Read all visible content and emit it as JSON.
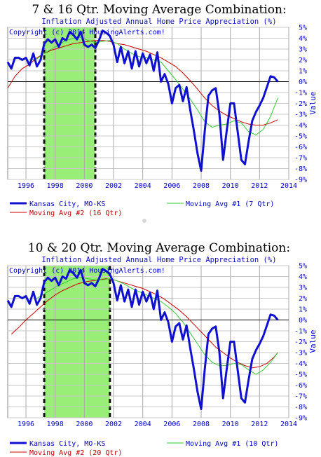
{
  "chart_data": [
    {
      "type": "line",
      "title": "7 & 16 Qtr. Moving Average Combination:",
      "subtitle": "Inflation Adjusted Annual Home Price Appreciation (%)",
      "copyright": "Copyright (c) 2014 HousingAlerts.com!",
      "ylabel": "Value",
      "xlim": [
        1994.75,
        2014
      ],
      "ylim": [
        -9,
        5
      ],
      "x_ticks": [
        "1996",
        "1998",
        "2000",
        "2002",
        "2004",
        "2006",
        "2008",
        "2010",
        "2012",
        "2014"
      ],
      "x_tick_values": [
        1996,
        1998,
        2000,
        2002,
        2004,
        2006,
        2008,
        2010,
        2012,
        2014
      ],
      "y_ticks": [
        "5%",
        "4%",
        "3%",
        "2%",
        "1%",
        "0%",
        "-1%",
        "-2%",
        "-3%",
        "-4%",
        "-5%",
        "-6%",
        "-7%",
        "-8%",
        "-9%"
      ],
      "y_tick_values": [
        5,
        4,
        3,
        2,
        1,
        0,
        -1,
        -2,
        -3,
        -4,
        -5,
        -6,
        -7,
        -8,
        -9
      ],
      "shaded_region": [
        1997.25,
        2000.75
      ],
      "grid": true,
      "legend": {
        "kansas": "Kansas City, MO-KS",
        "ma1": "Moving Avg #1 (7 Qtr)",
        "ma2": "Moving Avg #2 (16 Qtr)"
      },
      "colors": {
        "kansas": "#1010d0",
        "ma1": "#33cc33",
        "ma2": "#cc0000",
        "shade": "#99ee77",
        "zero": "#000000"
      },
      "series": [
        {
          "name": "Kansas City, MO-KS",
          "x": [
            1994.75,
            1995.0,
            1995.25,
            1995.5,
            1995.75,
            1996.0,
            1996.25,
            1996.5,
            1996.75,
            1997.0,
            1997.25,
            1997.5,
            1997.75,
            1998.0,
            1998.25,
            1998.5,
            1998.75,
            1999.0,
            1999.25,
            1999.5,
            1999.75,
            2000.0,
            2000.25,
            2000.5,
            2000.75,
            2001.0,
            2001.25,
            2001.5,
            2001.75,
            2002.0,
            2002.25,
            2002.5,
            2002.75,
            2003.0,
            2003.25,
            2003.5,
            2003.75,
            2004.0,
            2004.25,
            2004.5,
            2004.75,
            2005.0,
            2005.25,
            2005.5,
            2005.75,
            2006.0,
            2006.25,
            2006.5,
            2006.75,
            2007.0,
            2007.25,
            2007.5,
            2007.75,
            2008.0,
            2008.25,
            2008.5,
            2008.75,
            2009.0,
            2009.25,
            2009.5,
            2009.75,
            2010.0,
            2010.25,
            2010.5,
            2010.75,
            2011.0,
            2011.25,
            2011.5,
            2011.75,
            2012.0,
            2012.25,
            2012.5,
            2012.75,
            2013.0,
            2013.25
          ],
          "y": [
            1.8,
            1.2,
            2.2,
            2.2,
            2.0,
            2.2,
            1.5,
            2.6,
            1.4,
            2.0,
            3.5,
            3.9,
            3.6,
            3.9,
            3.2,
            4.0,
            3.8,
            4.6,
            4.3,
            3.9,
            4.6,
            3.4,
            3.2,
            3.4,
            3.1,
            3.8,
            4.7,
            4.5,
            4.2,
            3.4,
            1.8,
            3.2,
            1.7,
            2.8,
            1.2,
            2.8,
            1.4,
            2.6,
            1.7,
            2.5,
            1.0,
            2.7,
            0.0,
            0.7,
            -0.2,
            -2.0,
            -0.6,
            -0.3,
            -1.8,
            -0.5,
            -2.6,
            -4.5,
            -6.6,
            -8.2,
            -4.5,
            -1.3,
            -0.8,
            -0.6,
            -3.0,
            -7.2,
            -4.5,
            -2.0,
            -2.0,
            -4.6,
            -7.2,
            -7.6,
            -5.5,
            -3.6,
            -2.8,
            -2.2,
            -1.5,
            -0.5,
            0.5,
            0.4,
            0.0
          ]
        },
        {
          "name": "Moving Avg #1 (7 Qtr)",
          "x": [
            1996.25,
            1996.75,
            1997.25,
            1997.75,
            1998.25,
            1998.75,
            1999.25,
            1999.75,
            2000.25,
            2000.75,
            2001.25,
            2001.75,
            2002.25,
            2002.75,
            2003.25,
            2003.75,
            2004.25,
            2004.75,
            2005.25,
            2005.75,
            2006.25,
            2006.75,
            2007.25,
            2007.75,
            2008.25,
            2008.75,
            2009.25,
            2009.75,
            2010.25,
            2010.75,
            2011.25,
            2011.75,
            2012.25,
            2012.75,
            2013.25
          ],
          "y": [
            2.0,
            2.1,
            2.6,
            3.0,
            3.4,
            3.8,
            4.0,
            4.1,
            3.8,
            3.6,
            3.7,
            3.8,
            3.5,
            3.0,
            2.6,
            2.3,
            2.2,
            2.0,
            1.8,
            1.0,
            0.2,
            -0.7,
            -1.6,
            -2.6,
            -3.7,
            -4.2,
            -4.0,
            -3.9,
            -3.6,
            -3.8,
            -4.6,
            -4.9,
            -4.4,
            -3.2,
            -1.5
          ]
        },
        {
          "name": "Moving Avg #2 (16 Qtr)",
          "x": [
            1994.75,
            1995.25,
            1995.75,
            1996.25,
            1996.75,
            1997.25,
            1997.75,
            1998.25,
            1998.75,
            1999.25,
            1999.75,
            2000.25,
            2000.75,
            2001.25,
            2001.75,
            2002.25,
            2002.75,
            2003.25,
            2003.75,
            2004.25,
            2004.75,
            2005.25,
            2005.75,
            2006.25,
            2006.75,
            2007.25,
            2007.75,
            2008.25,
            2008.75,
            2009.25,
            2009.75,
            2010.25,
            2010.75,
            2011.25,
            2011.75,
            2012.25,
            2012.75,
            2013.25
          ],
          "y": [
            -0.6,
            0.5,
            1.2,
            1.6,
            2.2,
            2.6,
            2.9,
            3.1,
            3.3,
            3.5,
            3.6,
            3.7,
            3.8,
            3.8,
            3.7,
            3.5,
            3.4,
            3.2,
            3.0,
            2.8,
            2.5,
            2.2,
            1.8,
            1.4,
            0.8,
            0.1,
            -0.7,
            -1.5,
            -2.2,
            -2.7,
            -3.1,
            -3.4,
            -3.7,
            -3.9,
            -4.0,
            -4.0,
            -3.8,
            -3.5
          ]
        }
      ]
    },
    {
      "type": "line",
      "title": "10 & 20 Qtr. Moving Average Combination:",
      "subtitle": "Inflation Adjusted Annual Home Price Appreciation (%)",
      "copyright": "Copyright (c) 2014 HousingAlerts.com!",
      "ylabel": "Value",
      "xlim": [
        1994.75,
        2014
      ],
      "ylim": [
        -9,
        5
      ],
      "x_ticks": [
        "1996",
        "1998",
        "2000",
        "2002",
        "2004",
        "2006",
        "2008",
        "2010",
        "2012",
        "2014"
      ],
      "x_tick_values": [
        1996,
        1998,
        2000,
        2002,
        2004,
        2006,
        2008,
        2010,
        2012,
        2014
      ],
      "y_ticks": [
        "5%",
        "4%",
        "3%",
        "2%",
        "1%",
        "0%",
        "-1%",
        "-2%",
        "-3%",
        "-4%",
        "-5%",
        "-6%",
        "-7%",
        "-8%",
        "-9%"
      ],
      "y_tick_values": [
        5,
        4,
        3,
        2,
        1,
        0,
        -1,
        -2,
        -3,
        -4,
        -5,
        -6,
        -7,
        -8,
        -9
      ],
      "shaded_region": [
        1997.25,
        2001.75
      ],
      "grid": true,
      "legend": {
        "kansas": "Kansas City, MO-KS",
        "ma1": "Moving Avg #1 (10 Qtr)",
        "ma2": "Moving Avg #2 (20 Qtr)"
      },
      "colors": {
        "kansas": "#1010d0",
        "ma1": "#33cc33",
        "ma2": "#cc0000",
        "shade": "#99ee77",
        "zero": "#000000"
      },
      "series": [
        {
          "name": "Kansas City, MO-KS",
          "x": [
            1994.75,
            1995.0,
            1995.25,
            1995.5,
            1995.75,
            1996.0,
            1996.25,
            1996.5,
            1996.75,
            1997.0,
            1997.25,
            1997.5,
            1997.75,
            1998.0,
            1998.25,
            1998.5,
            1998.75,
            1999.0,
            1999.25,
            1999.5,
            1999.75,
            2000.0,
            2000.25,
            2000.5,
            2000.75,
            2001.0,
            2001.25,
            2001.5,
            2001.75,
            2002.0,
            2002.25,
            2002.5,
            2002.75,
            2003.0,
            2003.25,
            2003.5,
            2003.75,
            2004.0,
            2004.25,
            2004.5,
            2004.75,
            2005.0,
            2005.25,
            2005.5,
            2005.75,
            2006.0,
            2006.25,
            2006.5,
            2006.75,
            2007.0,
            2007.25,
            2007.5,
            2007.75,
            2008.0,
            2008.25,
            2008.5,
            2008.75,
            2009.0,
            2009.25,
            2009.5,
            2009.75,
            2010.0,
            2010.25,
            2010.5,
            2010.75,
            2011.0,
            2011.25,
            2011.5,
            2011.75,
            2012.0,
            2012.25,
            2012.5,
            2012.75,
            2013.0,
            2013.25
          ],
          "y": [
            1.8,
            1.2,
            2.2,
            2.2,
            2.0,
            2.2,
            1.5,
            2.6,
            1.4,
            2.0,
            3.5,
            3.9,
            3.6,
            3.9,
            3.2,
            4.0,
            3.8,
            4.6,
            4.3,
            3.9,
            4.6,
            3.4,
            3.2,
            3.4,
            3.1,
            3.8,
            4.7,
            4.5,
            4.2,
            3.4,
            1.8,
            3.2,
            1.7,
            2.8,
            1.2,
            2.8,
            1.4,
            2.6,
            1.7,
            2.5,
            1.0,
            2.7,
            0.0,
            0.7,
            -0.2,
            -2.0,
            -0.6,
            -0.3,
            -1.8,
            -0.5,
            -2.6,
            -4.5,
            -6.6,
            -8.2,
            -4.5,
            -1.3,
            -0.8,
            -0.6,
            -3.0,
            -7.2,
            -4.5,
            -2.0,
            -2.0,
            -4.6,
            -7.2,
            -7.6,
            -5.5,
            -3.6,
            -2.8,
            -2.2,
            -1.5,
            -0.5,
            0.5,
            0.4,
            0.0
          ]
        },
        {
          "name": "Moving Avg #1 (10 Qtr)",
          "x": [
            1996.75,
            1997.25,
            1997.75,
            1998.25,
            1998.75,
            1999.25,
            1999.75,
            2000.25,
            2000.75,
            2001.25,
            2001.75,
            2002.25,
            2002.75,
            2003.25,
            2003.75,
            2004.25,
            2004.75,
            2005.25,
            2005.75,
            2006.25,
            2006.75,
            2007.25,
            2007.75,
            2008.25,
            2008.75,
            2009.25,
            2009.75,
            2010.25,
            2010.75,
            2011.25,
            2011.75,
            2012.25,
            2012.75,
            2013.25
          ],
          "y": [
            2.0,
            2.4,
            2.8,
            3.2,
            3.5,
            3.8,
            3.9,
            3.8,
            3.7,
            3.7,
            3.8,
            3.6,
            3.3,
            2.9,
            2.6,
            2.3,
            2.0,
            1.7,
            1.2,
            0.6,
            -0.2,
            -1.2,
            -2.2,
            -3.2,
            -3.9,
            -4.2,
            -4.2,
            -4.0,
            -4.1,
            -4.6,
            -5.0,
            -4.6,
            -3.9,
            -3.0
          ]
        },
        {
          "name": "Moving Avg #2 (20 Qtr)",
          "x": [
            1995.0,
            1995.5,
            1996.0,
            1996.5,
            1997.0,
            1997.5,
            1998.0,
            1998.5,
            1999.0,
            1999.5,
            2000.0,
            2000.5,
            2001.0,
            2001.5,
            2002.0,
            2002.5,
            2003.0,
            2003.5,
            2004.0,
            2004.5,
            2005.0,
            2005.5,
            2006.0,
            2006.5,
            2007.0,
            2007.5,
            2008.0,
            2008.5,
            2009.0,
            2009.5,
            2010.0,
            2010.5,
            2011.0,
            2011.5,
            2012.0,
            2012.5,
            2013.0,
            2013.25
          ],
          "y": [
            -1.3,
            -0.7,
            0.0,
            0.6,
            1.2,
            1.8,
            2.3,
            2.7,
            3.0,
            3.3,
            3.5,
            3.6,
            3.7,
            3.8,
            3.7,
            3.5,
            3.3,
            3.1,
            2.9,
            2.6,
            2.3,
            1.9,
            1.4,
            0.9,
            0.3,
            -0.4,
            -1.1,
            -1.8,
            -2.5,
            -3.0,
            -3.5,
            -3.9,
            -4.2,
            -4.4,
            -4.3,
            -4.0,
            -3.4,
            -3.0
          ]
        }
      ]
    }
  ]
}
